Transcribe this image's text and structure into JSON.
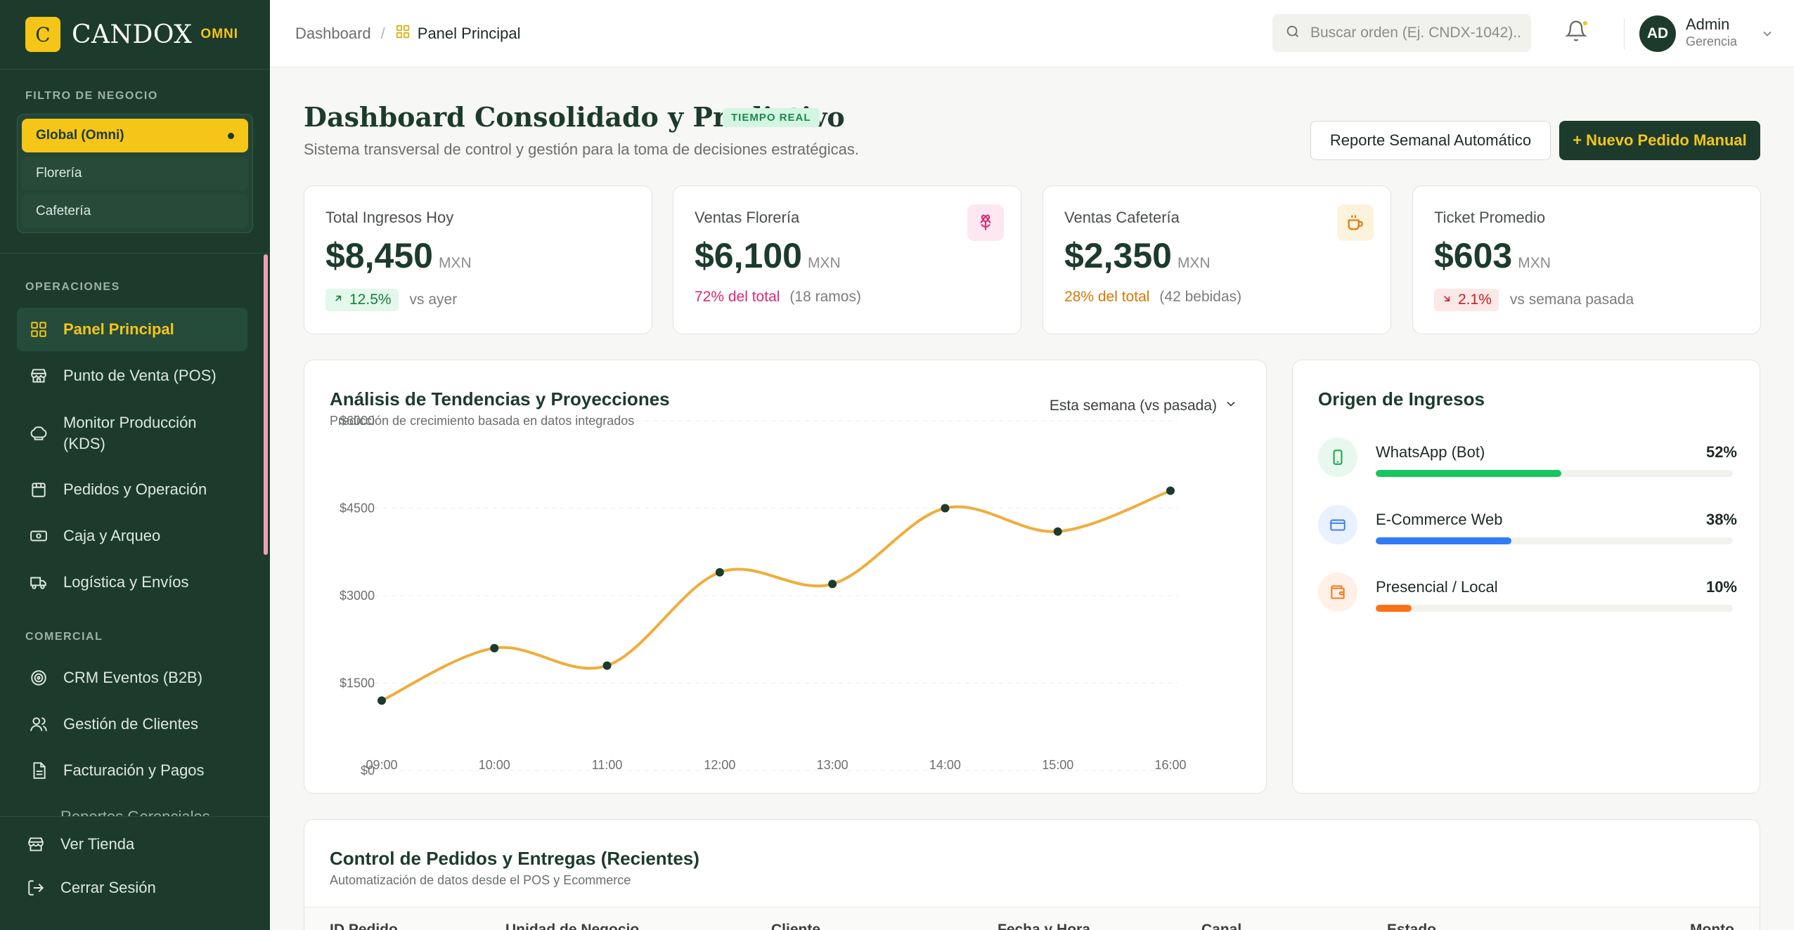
{
  "brand": {
    "logo_letter": "C",
    "name": "CANDOX",
    "tag": "OMNI"
  },
  "sidebar": {
    "filter_label": "FILTRO DE NEGOCIO",
    "filters": [
      {
        "label": "Global (Omni)",
        "active": true
      },
      {
        "label": "Florería",
        "active": false
      },
      {
        "label": "Cafetería",
        "active": false
      }
    ],
    "operations_label": "OPERACIONES",
    "operations": [
      {
        "label": "Panel Principal",
        "icon": "grid-icon",
        "active": true
      },
      {
        "label": "Punto de Venta (POS)",
        "icon": "store-icon"
      },
      {
        "label": "Monitor Producción (KDS)",
        "icon": "chef-hat-icon"
      },
      {
        "label": "Pedidos y Operación",
        "icon": "clipboard-icon"
      },
      {
        "label": "Caja y Arqueo",
        "icon": "cash-icon"
      },
      {
        "label": "Logística y Envíos",
        "icon": "truck-icon"
      }
    ],
    "commercial_label": "COMERCIAL",
    "commercial": [
      {
        "label": "CRM Eventos (B2B)",
        "icon": "target-icon"
      },
      {
        "label": "Gestión de Clientes",
        "icon": "users-icon"
      },
      {
        "label": "Facturación y Pagos",
        "icon": "invoice-icon"
      }
    ],
    "peek_item": "Reportes Gerenciales",
    "bottom": [
      {
        "label": "Ver Tienda",
        "icon": "store-icon"
      },
      {
        "label": "Cerrar Sesión",
        "icon": "logout-icon"
      }
    ]
  },
  "topbar": {
    "breadcrumb_root": "Dashboard",
    "breadcrumb_sep": "/",
    "breadcrumb_current": "Panel Principal",
    "search_placeholder": "Buscar orden (Ej. CNDX-1042)...",
    "user_initials": "AD",
    "user_name": "Admin",
    "user_role": "Gerencia"
  },
  "page": {
    "title": "Dashboard Consolidado y Predictivo",
    "live_badge": "TIEMPO REAL",
    "subtitle": "Sistema transversal de control y gestión para la toma de decisiones estratégicas.",
    "btn_report": "Reporte Semanal Automático",
    "btn_new": "+ Nuevo Pedido Manual"
  },
  "kpis": [
    {
      "label": "Total Ingresos Hoy",
      "value": "$8,450",
      "currency": "MXN",
      "badge": "12.5%",
      "trend": "up",
      "note": "vs ayer"
    },
    {
      "label": "Ventas Florería",
      "value": "$6,100",
      "currency": "MXN",
      "share": "72% del total",
      "note": "(18 ramos)",
      "icon": "flower-icon",
      "color": "#db2777"
    },
    {
      "label": "Ventas Cafetería",
      "value": "$2,350",
      "currency": "MXN",
      "share": "28% del total",
      "note": "(42 bebidas)",
      "icon": "coffee-icon",
      "color": "#d97706"
    },
    {
      "label": "Ticket Promedio",
      "value": "$603",
      "currency": "MXN",
      "badge": "2.1%",
      "trend": "down",
      "note": "vs semana pasada"
    }
  ],
  "trend_card": {
    "title": "Análisis de Tendencias y Proyecciones",
    "subtitle": "Predicción de crecimiento basada en datos integrados",
    "period": "Esta semana (vs pasada)"
  },
  "chart_data": {
    "type": "line",
    "x": [
      "09:00",
      "10:00",
      "11:00",
      "12:00",
      "13:00",
      "14:00",
      "15:00",
      "16:00"
    ],
    "series": [
      {
        "values": [
          1200,
          2100,
          1800,
          3400,
          3200,
          4500,
          4100,
          4800
        ]
      }
    ],
    "y_ticks": [
      "$0",
      "$1500",
      "$3000",
      "$4500",
      "$6000"
    ],
    "ylim": [
      0,
      6000
    ],
    "grid": true,
    "line_color": "#f0ad3c",
    "point_color": "#1c3b2d"
  },
  "origin_card": {
    "title": "Origen de Ingresos",
    "items": [
      {
        "name": "WhatsApp (Bot)",
        "percent": "52%",
        "value": 52,
        "color": "#16c55e",
        "icon": "phone-icon"
      },
      {
        "name": "E-Commerce Web",
        "percent": "38%",
        "value": 38,
        "color": "#2f7cf6",
        "icon": "card-icon"
      },
      {
        "name": "Presencial / Local",
        "percent": "10%",
        "value": 10,
        "color": "#f97316",
        "icon": "wallet-icon"
      }
    ]
  },
  "orders_card": {
    "title": "Control de Pedidos y Entregas (Recientes)",
    "subtitle": "Automatización de datos desde el POS y Ecommerce",
    "columns": [
      "ID Pedido",
      "Unidad de Negocio",
      "Cliente",
      "Fecha y Hora",
      "Canal",
      "Estado",
      "Monto"
    ]
  }
}
